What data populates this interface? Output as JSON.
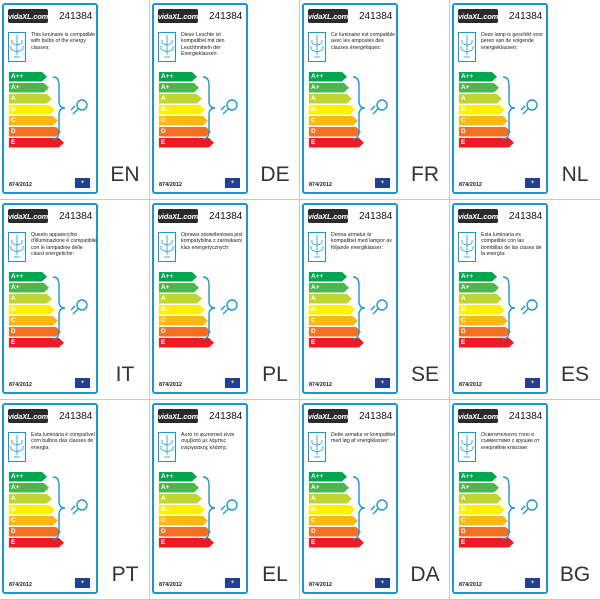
{
  "logo_text": "vidaXL.com",
  "product_code": "241384",
  "regulation": "874/2012",
  "icons": {
    "lamp": "chandelier-icon",
    "bulb": "light-bulb-icon",
    "flag": "eu-flag-icon"
  },
  "classes": [
    {
      "label": "A++",
      "color": "#00a650"
    },
    {
      "label": "A+",
      "color": "#4cb848"
    },
    {
      "label": "A",
      "color": "#bed62f"
    },
    {
      "label": "B",
      "color": "#fff200"
    },
    {
      "label": "C",
      "color": "#fdb913"
    },
    {
      "label": "D",
      "color": "#f37021"
    },
    {
      "label": "E",
      "color": "#ed1c24"
    }
  ],
  "panels": [
    {
      "lang": "EN",
      "text": "This luminaire is compatible with bulbs of the energy classes:"
    },
    {
      "lang": "DE",
      "text": "Diese Leuchte ist kompatibel mit den Leuchtmitteln der Energieklassen:"
    },
    {
      "lang": "FR",
      "text": "Ce luminaire est compatible avec les ampoules des classes énergétiques:"
    },
    {
      "lang": "NL",
      "text": "Deze lamp is geschikt voor peren van de volgende energieklassen:"
    },
    {
      "lang": "IT",
      "text": "Questo apparecchio d'illuminazione è compatibile con le lampadine delle classi energetiche:"
    },
    {
      "lang": "PL",
      "text": "Oprawa oświetleniowa jest kompatybilna z żarówkami klas energetycznych:"
    },
    {
      "lang": "SE",
      "text": "Denna armatur är kompatibel med lampor av följande energiklasser:"
    },
    {
      "lang": "ES",
      "text": "Esta luminaria es compatible con las bombillas de las clases de la energía:"
    },
    {
      "lang": "PT",
      "text": "Esta luminária é compatível com bulbos das classes de energia:"
    },
    {
      "lang": "EL",
      "text": "Αυτό το φωτιστικό είναι συμβατό με λάμπες ενεργειακής κλάσης:"
    },
    {
      "lang": "DA",
      "text": "Dette armatur er kompatibel med løg af energiklasser:"
    },
    {
      "lang": "BG",
      "text": "Осветителното тяло е съвместимо с крушки от енергийни класове:"
    }
  ]
}
